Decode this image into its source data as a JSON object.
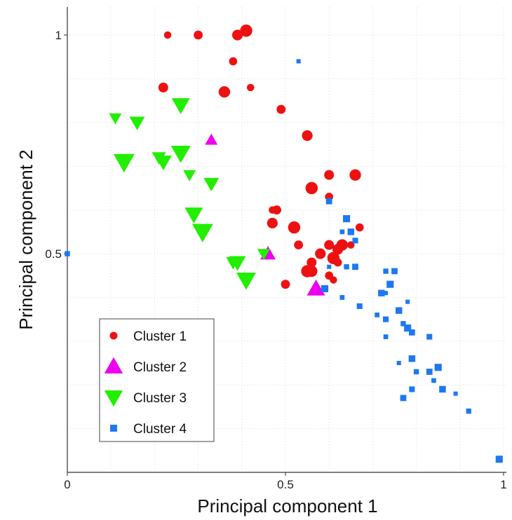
{
  "chart_data": {
    "type": "scatter",
    "xlabel": "Principal component 1",
    "ylabel": "Principal component 2",
    "xlim": [
      0,
      1
    ],
    "ylim": [
      0,
      1.06
    ],
    "x_ticks": [
      {
        "value": 0,
        "label": "0"
      },
      {
        "value": 0.5,
        "label": "0.5"
      },
      {
        "value": 1,
        "label": "1"
      }
    ],
    "y_ticks": [
      {
        "value": 0.5,
        "label": "0.5"
      },
      {
        "value": 1,
        "label": "1"
      }
    ],
    "grid": true,
    "legend_position": "bottom-left",
    "series": [
      {
        "name": "Cluster 1",
        "marker": "circle",
        "color": "#ee1111",
        "points": [
          [
            0.23,
            1.0
          ],
          [
            0.3,
            1.0
          ],
          [
            0.39,
            1.0
          ],
          [
            0.41,
            1.01
          ],
          [
            0.38,
            0.94
          ],
          [
            0.22,
            0.88
          ],
          [
            0.36,
            0.87
          ],
          [
            0.42,
            0.88
          ],
          [
            0.49,
            0.83
          ],
          [
            0.55,
            0.77
          ],
          [
            0.56,
            0.65
          ],
          [
            0.6,
            0.63
          ],
          [
            0.6,
            0.68
          ],
          [
            0.66,
            0.68
          ],
          [
            0.47,
            0.6
          ],
          [
            0.48,
            0.6
          ],
          [
            0.47,
            0.57
          ],
          [
            0.52,
            0.56
          ],
          [
            0.67,
            0.56
          ],
          [
            0.6,
            0.52
          ],
          [
            0.63,
            0.52
          ],
          [
            0.65,
            0.52
          ],
          [
            0.53,
            0.52
          ],
          [
            0.58,
            0.5
          ],
          [
            0.61,
            0.49
          ],
          [
            0.62,
            0.48
          ],
          [
            0.56,
            0.48
          ],
          [
            0.56,
            0.46
          ],
          [
            0.61,
            0.44
          ],
          [
            0.5,
            0.43
          ],
          [
            0.62,
            0.51
          ],
          [
            0.55,
            0.46
          ],
          [
            0.6,
            0.45
          ]
        ]
      },
      {
        "name": "Cluster 2",
        "marker": "triangle-up",
        "color": "#ee00ee",
        "points": [
          [
            0.33,
            0.76
          ],
          [
            0.46,
            0.5
          ],
          [
            0.57,
            0.42
          ]
        ]
      },
      {
        "name": "Cluster 3",
        "marker": "triangle-down",
        "color": "#22ee00",
        "points": [
          [
            0.11,
            0.81
          ],
          [
            0.16,
            0.8
          ],
          [
            0.26,
            0.84
          ],
          [
            0.13,
            0.71
          ],
          [
            0.21,
            0.72
          ],
          [
            0.22,
            0.71
          ],
          [
            0.26,
            0.73
          ],
          [
            0.28,
            0.68
          ],
          [
            0.33,
            0.66
          ],
          [
            0.29,
            0.59
          ],
          [
            0.31,
            0.55
          ],
          [
            0.38,
            0.48
          ],
          [
            0.39,
            0.48
          ],
          [
            0.41,
            0.44
          ],
          [
            0.45,
            0.5
          ]
        ]
      },
      {
        "name": "Cluster 4",
        "marker": "square",
        "color": "#1e78f0",
        "points": [
          [
            0.53,
            0.94
          ],
          [
            0.0,
            0.5
          ],
          [
            0.6,
            0.62
          ],
          [
            0.64,
            0.58
          ],
          [
            0.63,
            0.55
          ],
          [
            0.66,
            0.53
          ],
          [
            0.65,
            0.55
          ],
          [
            0.6,
            0.47
          ],
          [
            0.64,
            0.47
          ],
          [
            0.66,
            0.47
          ],
          [
            0.59,
            0.42
          ],
          [
            0.63,
            0.4
          ],
          [
            0.67,
            0.38
          ],
          [
            0.72,
            0.41
          ],
          [
            0.73,
            0.41
          ],
          [
            0.73,
            0.46
          ],
          [
            0.75,
            0.46
          ],
          [
            0.74,
            0.43
          ],
          [
            0.71,
            0.36
          ],
          [
            0.73,
            0.35
          ],
          [
            0.76,
            0.37
          ],
          [
            0.78,
            0.39
          ],
          [
            0.77,
            0.34
          ],
          [
            0.79,
            0.32
          ],
          [
            0.78,
            0.33
          ],
          [
            0.73,
            0.31
          ],
          [
            0.83,
            0.31
          ],
          [
            0.79,
            0.26
          ],
          [
            0.76,
            0.25
          ],
          [
            0.8,
            0.23
          ],
          [
            0.83,
            0.23
          ],
          [
            0.85,
            0.24
          ],
          [
            0.84,
            0.21
          ],
          [
            0.79,
            0.19
          ],
          [
            0.86,
            0.19
          ],
          [
            0.89,
            0.18
          ],
          [
            0.92,
            0.14
          ],
          [
            0.77,
            0.17
          ],
          [
            0.99,
            0.03
          ]
        ]
      }
    ]
  }
}
